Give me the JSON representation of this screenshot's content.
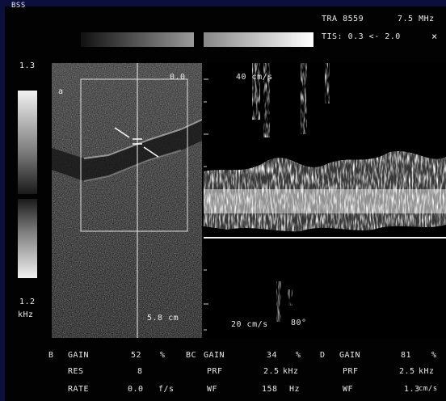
{
  "top_left_label": "BSS",
  "header": {
    "transducer": "TRA 8559",
    "frequency": "7.5 MHz",
    "tis_label": "TIS: 0.3 <- 2.0",
    "close_glyph": "×"
  },
  "scale": {
    "top_value": "1.3",
    "bottom_value": "1.2",
    "unit": "kHz"
  },
  "bmode": {
    "sample_marker": "a",
    "angle_label": "0.0",
    "depth_label": "5.8 cm"
  },
  "doppler": {
    "top_velocity": "40 cm/s",
    "bottom_velocity": "20 cm/s",
    "angle": "80°"
  },
  "params": {
    "b": {
      "mode_label": "B",
      "rows": [
        {
          "name": "GAIN",
          "value": "52",
          "unit": "%"
        },
        {
          "name": "RES",
          "value": "8",
          "unit": ""
        },
        {
          "name": "RATE",
          "value": "0.0",
          "unit": "f/s"
        }
      ]
    },
    "bc": {
      "mode_label": "BC",
      "rows": [
        {
          "name": "GAIN",
          "value": "34",
          "unit": "%"
        },
        {
          "name": "PRF",
          "value": "2.5",
          "unit": "kHz"
        },
        {
          "name": "WF",
          "value": "158",
          "unit": "Hz"
        }
      ]
    },
    "d": {
      "mode_label": "D",
      "rows": [
        {
          "name": "GAIN",
          "value": "81",
          "unit": "%"
        },
        {
          "name": "PRF",
          "value": "2.5",
          "unit": "kHz"
        },
        {
          "name": "WF",
          "value": "1.3",
          "unit": "cm/s"
        }
      ]
    }
  }
}
